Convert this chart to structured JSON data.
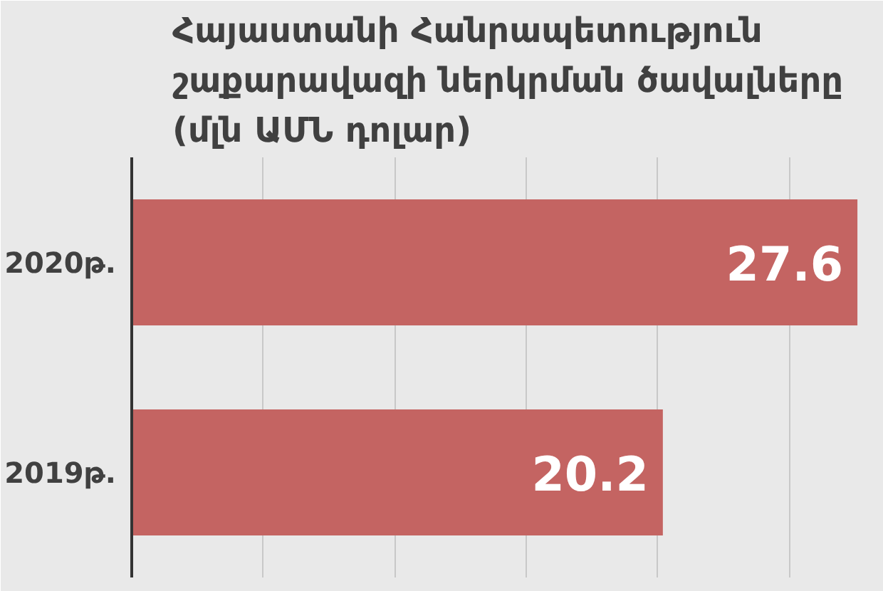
{
  "chart_data": {
    "type": "bar",
    "orientation": "horizontal",
    "title": "Հայաստանի Հանրապետություն շաքարավազի ներկրման ծավալները (մլն ԱՄՆ դոլար)",
    "categories": [
      "2020թ.",
      "2019թ."
    ],
    "values": [
      27.6,
      20.2
    ],
    "color": "#c46462",
    "xlim": [
      0,
      28.6
    ],
    "xticks": [
      {
        "value": 5,
        "label": null
      },
      {
        "value": 10,
        "label": null
      },
      {
        "value": 15,
        "label": null
      },
      {
        "value": 20,
        "label": null
      },
      {
        "value": 25,
        "label": null
      }
    ],
    "grid": "x",
    "tick_labels": "y",
    "data_labels": true
  }
}
